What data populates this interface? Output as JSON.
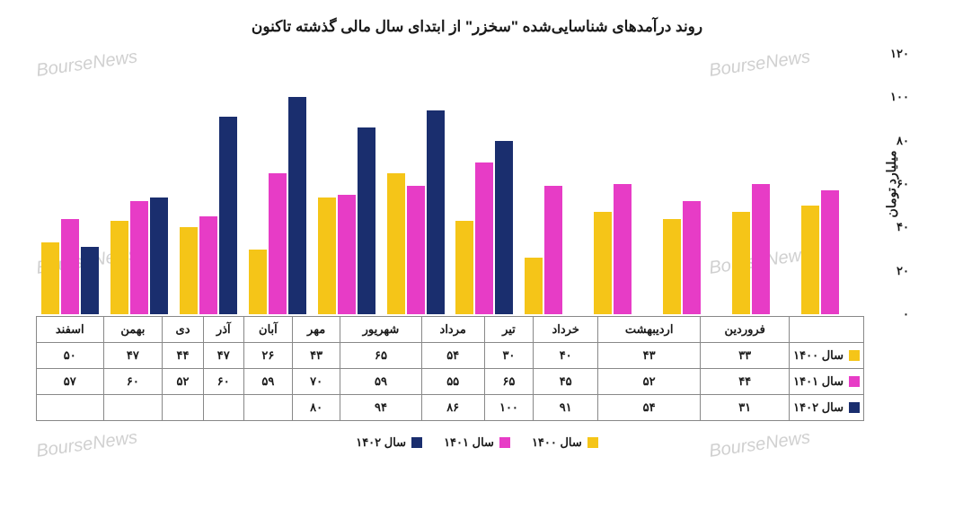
{
  "chart": {
    "title": "روند درآمدهای شناسایی‌شده \"سخزر\" از ابتدای سال مالی گذشته تاکنون",
    "type": "bar",
    "ylabel": "میلیارد تومان",
    "ylim": [
      0,
      120
    ],
    "ytick_step": 20,
    "yticks": [
      "۰",
      "۲۰",
      "۴۰",
      "۶۰",
      "۸۰",
      "۱۰۰",
      "۱۲۰"
    ],
    "categories": [
      "فروردین",
      "اردیبهشت",
      "خرداد",
      "تیر",
      "مرداد",
      "شهریور",
      "مهر",
      "آبان",
      "آذر",
      "دی",
      "بهمن",
      "اسفند"
    ],
    "series": [
      {
        "name": "سال ۱۴۰۰",
        "color": "#f5c518",
        "values": [
          33,
          43,
          40,
          30,
          54,
          65,
          43,
          26,
          47,
          44,
          47,
          50
        ],
        "labels": [
          "۳۳",
          "۴۳",
          "۴۰",
          "۳۰",
          "۵۴",
          "۶۵",
          "۴۳",
          "۲۶",
          "۴۷",
          "۴۴",
          "۴۷",
          "۵۰"
        ]
      },
      {
        "name": "سال ۱۴۰۱",
        "color": "#e73cc6",
        "values": [
          44,
          52,
          45,
          65,
          55,
          59,
          70,
          59,
          60,
          52,
          60,
          57
        ],
        "labels": [
          "۴۴",
          "۵۲",
          "۴۵",
          "۶۵",
          "۵۵",
          "۵۹",
          "۷۰",
          "۵۹",
          "۶۰",
          "۵۲",
          "۶۰",
          "۵۷"
        ]
      },
      {
        "name": "سال ۱۴۰۲",
        "color": "#1a2e6e",
        "values": [
          31,
          54,
          91,
          100,
          86,
          94,
          80,
          null,
          null,
          null,
          null,
          null
        ],
        "labels": [
          "۳۱",
          "۵۴",
          "۹۱",
          "۱۰۰",
          "۸۶",
          "۹۴",
          "۸۰",
          "",
          "",
          "",
          "",
          ""
        ]
      }
    ],
    "background_color": "#ffffff",
    "watermark_text": "BourseNews",
    "watermark_color": "#d8d8d8",
    "title_fontsize": 17,
    "label_fontsize": 13
  }
}
